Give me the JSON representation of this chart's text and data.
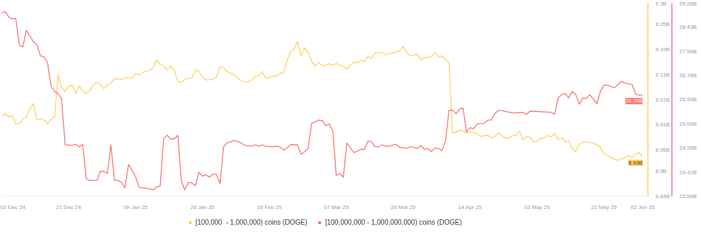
{
  "chart_data": {
    "type": "line",
    "xlim": [
      "2024-12-02",
      "2025-06-03T12:00"
    ],
    "xticks": [
      {
        "value": "2024-12-02",
        "label": "02 Dec 24"
      },
      {
        "value": "2024-12-21",
        "label": "21 Dec 24"
      },
      {
        "value": "2025-01-09",
        "label": "09 Jan 25"
      },
      {
        "value": "2025-01-28",
        "label": "28 Jan 25"
      },
      {
        "value": "2025-02-16",
        "label": "16 Feb 25"
      },
      {
        "value": "2025-03-07",
        "label": "07 Mar 25"
      },
      {
        "value": "2025-03-26",
        "label": "26 Mar 25"
      },
      {
        "value": "2025-04-14",
        "label": "14 Apr 25"
      },
      {
        "value": "2025-05-03",
        "label": "03 May 25"
      },
      {
        "value": "2025-05-22",
        "label": "22 May 25"
      },
      {
        "value": "2025-06-02",
        "label": "02 Jun 25"
      }
    ],
    "ylim": [
      8.84,
      9.3
    ],
    "yticks": [
      {
        "value": 8.84,
        "label": "8.84B"
      },
      {
        "value": 8.9,
        "label": "8.9B"
      },
      {
        "value": 8.95,
        "label": "8.95B"
      },
      {
        "value": 9.01,
        "label": "9.01B"
      },
      {
        "value": 9.07,
        "label": "9.07B"
      },
      {
        "value": 9.13,
        "label": "9.13B"
      },
      {
        "value": 9.19,
        "label": "9.19B"
      },
      {
        "value": 9.25,
        "label": "9.25B"
      },
      {
        "value": 9.3,
        "label": "9.3B"
      }
    ],
    "y2lim": [
      22.59,
      29.26
    ],
    "y2ticks": [
      {
        "value": 22.59,
        "label": "22.59B"
      },
      {
        "value": 23.42,
        "label": "23.42B"
      },
      {
        "value": 24.26,
        "label": "24.26B"
      },
      {
        "value": 25.09,
        "label": "25.09B"
      },
      {
        "value": 25.93,
        "label": "25.93B"
      },
      {
        "value": 26.76,
        "label": "26.76B"
      },
      {
        "value": 27.59,
        "label": "27.59B"
      },
      {
        "value": 28.43,
        "label": "28.43B"
      },
      {
        "value": 29.26,
        "label": "29.26B"
      }
    ],
    "legend": "bottom",
    "annotations": [
      "8.93B",
      "26.08B"
    ],
    "series": [
      {
        "name": "[100,000  - 1,000,000) coins (DOGE)",
        "color": "#fdd05c",
        "x": [
          "2024-12-02",
          "2024-12-03",
          "2024-12-04",
          "2024-12-05",
          "2024-12-06",
          "2024-12-07",
          "2024-12-08",
          "2024-12-09",
          "2024-12-10",
          "2024-12-11",
          "2024-12-12",
          "2024-12-13",
          "2024-12-14",
          "2024-12-15",
          "2024-12-16",
          "2024-12-17",
          "2024-12-18",
          "2024-12-19",
          "2024-12-20",
          "2024-12-21",
          "2024-12-22",
          "2024-12-23",
          "2024-12-24",
          "2024-12-25",
          "2024-12-26",
          "2024-12-27",
          "2024-12-28",
          "2024-12-29",
          "2024-12-30",
          "2024-12-31",
          "2025-01-01",
          "2025-01-02",
          "2025-01-03",
          "2025-01-05",
          "2025-01-06",
          "2025-01-08",
          "2025-01-09",
          "2025-01-10",
          "2025-01-11",
          "2025-01-13",
          "2025-01-14",
          "2025-01-15",
          "2025-01-16",
          "2025-01-17",
          "2025-01-18",
          "2025-01-19",
          "2025-01-20",
          "2025-01-21",
          "2025-01-22",
          "2025-01-23",
          "2025-01-24",
          "2025-01-25",
          "2025-01-26",
          "2025-01-27",
          "2025-01-28",
          "2025-01-29",
          "2025-01-31",
          "2025-02-01",
          "2025-02-02",
          "2025-02-03",
          "2025-02-04",
          "2025-02-05",
          "2025-02-06",
          "2025-02-07",
          "2025-02-08",
          "2025-02-10",
          "2025-02-11",
          "2025-02-12",
          "2025-02-13",
          "2025-02-14",
          "2025-02-15",
          "2025-02-16",
          "2025-02-17",
          "2025-02-18",
          "2025-02-19",
          "2025-02-20",
          "2025-02-21",
          "2025-02-22",
          "2025-02-23",
          "2025-02-24",
          "2025-02-25",
          "2025-02-26",
          "2025-02-27",
          "2025-02-28",
          "2025-03-01",
          "2025-03-02",
          "2025-03-03",
          "2025-03-04",
          "2025-03-05",
          "2025-03-06",
          "2025-03-07",
          "2025-03-08",
          "2025-03-09",
          "2025-03-10",
          "2025-03-11",
          "2025-03-12",
          "2025-03-13",
          "2025-03-14",
          "2025-03-15",
          "2025-03-16",
          "2025-03-17",
          "2025-03-18",
          "2025-03-20",
          "2025-03-21",
          "2025-03-22",
          "2025-03-23",
          "2025-03-24",
          "2025-03-25",
          "2025-03-26",
          "2025-03-27",
          "2025-03-28",
          "2025-03-30",
          "2025-03-31",
          "2025-04-01",
          "2025-04-02",
          "2025-04-03",
          "2025-04-04",
          "2025-04-05",
          "2025-04-06",
          "2025-04-07",
          "2025-04-08",
          "2025-04-09",
          "2025-04-10",
          "2025-04-11",
          "2025-04-12",
          "2025-04-13",
          "2025-04-14",
          "2025-04-15",
          "2025-04-16",
          "2025-04-17",
          "2025-04-18",
          "2025-04-19",
          "2025-04-20",
          "2025-04-21",
          "2025-04-22",
          "2025-04-23",
          "2025-04-24",
          "2025-04-25",
          "2025-04-26",
          "2025-04-27",
          "2025-04-28",
          "2025-04-29",
          "2025-04-30",
          "2025-05-01",
          "2025-05-02",
          "2025-05-03",
          "2025-05-04",
          "2025-05-05",
          "2025-05-06",
          "2025-05-07",
          "2025-05-08",
          "2025-05-09",
          "2025-05-10",
          "2025-05-11",
          "2025-05-12",
          "2025-05-13",
          "2025-05-14",
          "2025-05-15",
          "2025-05-16",
          "2025-05-17",
          "2025-05-19",
          "2025-05-20",
          "2025-05-21",
          "2025-05-22",
          "2025-05-23",
          "2025-05-25",
          "2025-05-26",
          "2025-05-27",
          "2025-05-28",
          "2025-05-29",
          "2025-05-30",
          "2025-05-31",
          "2025-06-01",
          "2025-06-02"
        ],
        "values": [
          9.031,
          9.037,
          9.029,
          9.032,
          9.012,
          9.014,
          9.023,
          9.029,
          9.05,
          9.061,
          9.022,
          9.025,
          9.022,
          9.012,
          9.023,
          9.029,
          9.129,
          9.099,
          9.09,
          9.102,
          9.105,
          9.085,
          9.103,
          9.09,
          9.085,
          9.091,
          9.105,
          9.111,
          9.108,
          9.096,
          9.105,
          9.109,
          9.12,
          9.118,
          9.123,
          9.121,
          9.132,
          9.129,
          9.135,
          9.141,
          9.146,
          9.164,
          9.155,
          9.15,
          9.141,
          9.15,
          9.14,
          9.114,
          9.111,
          9.118,
          9.121,
          9.121,
          9.141,
          9.137,
          9.124,
          9.117,
          9.118,
          9.124,
          9.149,
          9.146,
          9.137,
          9.132,
          9.13,
          9.123,
          9.114,
          9.112,
          9.117,
          9.127,
          9.127,
          9.137,
          9.12,
          9.123,
          9.127,
          9.126,
          9.133,
          9.133,
          9.162,
          9.183,
          9.191,
          9.209,
          9.173,
          9.194,
          9.182,
          9.161,
          9.15,
          9.158,
          9.152,
          9.152,
          9.156,
          9.152,
          9.156,
          9.152,
          9.15,
          9.143,
          9.153,
          9.159,
          9.158,
          9.164,
          9.161,
          9.173,
          9.168,
          9.182,
          9.182,
          9.176,
          9.18,
          9.18,
          9.185,
          9.186,
          9.197,
          9.183,
          9.174,
          9.179,
          9.165,
          9.171,
          9.17,
          9.173,
          9.182,
          9.173,
          9.174,
          9.165,
          9.159,
          8.991,
          8.993,
          8.997,
          8.996,
          8.99,
          8.993,
          8.991,
          8.99,
          8.982,
          8.985,
          8.985,
          8.979,
          8.982,
          8.991,
          8.985,
          8.979,
          8.979,
          8.985,
          8.985,
          8.996,
          8.975,
          8.982,
          8.981,
          8.97,
          8.97,
          8.978,
          8.979,
          8.985,
          8.982,
          8.99,
          8.975,
          8.979,
          8.97,
          8.973,
          8.953,
          8.946,
          8.964,
          8.969,
          8.97,
          8.966,
          8.963,
          8.958,
          8.94,
          8.938,
          8.928,
          8.926,
          8.929,
          8.932,
          8.937,
          8.932,
          8.94,
          8.944,
          8.934
        ]
      },
      {
        "name": "[100,000,000 - 1,000,000,000) coins (DOGE)",
        "color": "#f76e6e",
        "axis": "y2",
        "x": [
          "2024-12-02",
          "2024-12-03",
          "2024-12-04",
          "2024-12-05",
          "2024-12-06",
          "2024-12-07",
          "2024-12-08",
          "2024-12-09",
          "2024-12-11",
          "2024-12-12",
          "2024-12-13",
          "2024-12-14",
          "2024-12-15",
          "2024-12-16",
          "2024-12-17",
          "2024-12-18",
          "2024-12-19",
          "2024-12-20",
          "2024-12-22",
          "2024-12-23",
          "2024-12-24",
          "2024-12-25",
          "2024-12-26",
          "2024-12-27",
          "2024-12-29",
          "2024-12-30",
          "2024-12-31",
          "2025-01-01",
          "2025-01-02",
          "2025-01-03",
          "2025-01-04",
          "2025-01-05",
          "2025-01-06",
          "2025-01-07",
          "2025-01-08",
          "2025-01-09",
          "2025-01-10",
          "2025-01-13",
          "2025-01-14",
          "2025-01-15",
          "2025-01-16",
          "2025-01-17",
          "2025-01-18",
          "2025-01-19",
          "2025-01-20",
          "2025-01-21",
          "2025-01-22",
          "2025-01-23",
          "2025-01-24",
          "2025-01-25",
          "2025-01-26",
          "2025-01-27",
          "2025-01-28",
          "2025-01-29",
          "2025-01-30",
          "2025-01-31",
          "2025-02-01",
          "2025-02-02",
          "2025-02-03",
          "2025-02-04",
          "2025-02-06",
          "2025-02-07",
          "2025-02-08",
          "2025-02-09",
          "2025-02-11",
          "2025-02-12",
          "2025-02-13",
          "2025-02-14",
          "2025-02-15",
          "2025-02-17",
          "2025-02-18",
          "2025-02-19",
          "2025-02-20",
          "2025-02-21",
          "2025-02-22",
          "2025-02-24",
          "2025-02-25",
          "2025-02-26",
          "2025-02-27",
          "2025-02-28",
          "2025-03-02",
          "2025-03-03",
          "2025-03-04",
          "2025-03-05",
          "2025-03-06",
          "2025-03-07",
          "2025-03-08",
          "2025-03-09",
          "2025-03-10",
          "2025-03-12",
          "2025-03-14",
          "2025-03-15",
          "2025-03-16",
          "2025-03-17",
          "2025-03-18",
          "2025-03-19",
          "2025-03-20",
          "2025-03-21",
          "2025-03-22",
          "2025-03-24",
          "2025-03-25",
          "2025-03-26",
          "2025-03-27",
          "2025-03-28",
          "2025-03-30",
          "2025-03-31",
          "2025-04-01",
          "2025-04-02",
          "2025-04-03",
          "2025-04-04",
          "2025-04-05",
          "2025-04-06",
          "2025-04-07",
          "2025-04-08",
          "2025-04-09",
          "2025-04-10",
          "2025-04-11",
          "2025-04-12",
          "2025-04-13",
          "2025-04-14",
          "2025-04-15",
          "2025-04-16",
          "2025-04-18",
          "2025-04-19",
          "2025-04-20",
          "2025-04-21",
          "2025-04-22",
          "2025-04-23",
          "2025-04-26",
          "2025-04-29",
          "2025-04-30",
          "2025-05-01",
          "2025-05-04",
          "2025-05-07",
          "2025-05-08",
          "2025-05-09",
          "2025-05-10",
          "2025-05-11",
          "2025-05-12",
          "2025-05-13",
          "2025-05-14",
          "2025-05-15",
          "2025-05-16",
          "2025-05-17",
          "2025-05-18",
          "2025-05-20",
          "2025-05-21",
          "2025-05-22",
          "2025-05-23",
          "2025-05-25",
          "2025-05-26",
          "2025-05-27",
          "2025-05-28",
          "2025-05-29",
          "2025-05-30",
          "2025-05-31",
          "2025-06-01",
          "2025-06-02"
        ],
        "values": [
          28.91,
          28.97,
          28.78,
          28.71,
          28.73,
          27.81,
          27.75,
          28.32,
          27.92,
          27.83,
          27.44,
          27.4,
          27.22,
          26.39,
          26.21,
          26.14,
          25.95,
          24.37,
          24.35,
          24.39,
          24.3,
          24.39,
          23.2,
          23.14,
          23.14,
          23.45,
          23.45,
          23.38,
          24.37,
          23.14,
          23.14,
          23.07,
          22.88,
          23.69,
          23.49,
          23.27,
          22.9,
          22.85,
          22.81,
          22.92,
          22.94,
          24.59,
          24.7,
          24.57,
          24.57,
          24.7,
          23.12,
          22.81,
          23.07,
          23.05,
          22.96,
          23.42,
          23.29,
          23.34,
          23.25,
          23.36,
          23.34,
          23.03,
          24.3,
          24.43,
          24.52,
          24.48,
          24.43,
          24.35,
          24.32,
          24.37,
          24.32,
          24.37,
          24.32,
          24.3,
          24.32,
          24.3,
          24.19,
          24.26,
          24.37,
          24.37,
          24.04,
          24.13,
          24.24,
          25.11,
          25.22,
          25.2,
          25.03,
          25.09,
          24.85,
          23.31,
          23.38,
          23.25,
          24.43,
          24.1,
          24.21,
          24.21,
          24.5,
          24.48,
          24.3,
          24.3,
          24.37,
          24.32,
          24.32,
          24.39,
          24.28,
          24.28,
          24.24,
          24.3,
          24.24,
          24.35,
          24.21,
          24.24,
          24.13,
          24.26,
          24.24,
          24.17,
          24.5,
          25.55,
          25.57,
          25.44,
          25.6,
          25.64,
          24.81,
          24.96,
          24.92,
          25.09,
          25.11,
          25.22,
          25.22,
          25.44,
          25.55,
          25.55,
          25.47,
          25.49,
          25.42,
          25.53,
          25.51,
          25.49,
          25.42,
          25.99,
          26.1,
          26.14,
          25.99,
          26.21,
          26.1,
          25.77,
          25.99,
          25.97,
          26.1,
          25.79,
          26.21,
          26.43,
          26.43,
          26.34,
          26.45,
          26.56,
          26.5,
          26.47,
          26.45,
          26.12,
          26.08,
          26.08
        ]
      }
    ]
  }
}
